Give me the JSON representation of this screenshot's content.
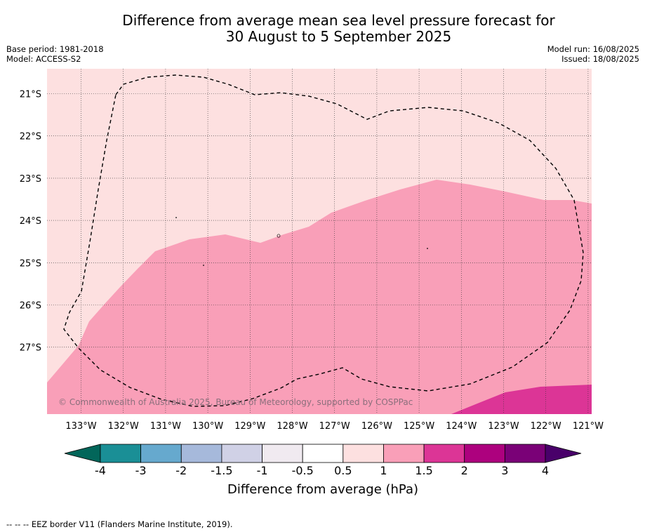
{
  "title_line1": "Difference from average mean sea level pressure forecast for",
  "title_line2": "30 August to 5 September 2025",
  "base_period": "Base period: 1981-2018",
  "model": "Model: ACCESS-S2",
  "model_run": "Model run: 16/08/2025",
  "issued": "Issued: 18/08/2025",
  "copyright": "© Commonwealth of Australia 2025, Bureau of Meteorology, supported by COSPPac",
  "footer": "--  --  -- EEZ border V11 (Flanders Marine Institute, 2019).",
  "map": {
    "lon_labels": [
      "133°W",
      "132°W",
      "131°W",
      "130°W",
      "129°W",
      "128°W",
      "127°W",
      "126°W",
      "125°W",
      "124°W",
      "123°W",
      "122°W",
      "121°W"
    ],
    "lat_labels": [
      "21°S",
      "22°S",
      "23°S",
      "24°S",
      "25°S",
      "26°S",
      "27°S"
    ],
    "region_colors": {
      "0.5_to_1": "#fde0e0",
      "1_to_1.5": "#f99fb8",
      "1.5_to_2": "#dc3596"
    }
  },
  "colorbar": {
    "label": "Difference from average (hPa)",
    "ticks": [
      "-4",
      "-3",
      "-2",
      "-1.5",
      "-1",
      "-0.5",
      "0.5",
      "1",
      "1.5",
      "2",
      "3",
      "4"
    ],
    "colors": [
      "#1a8f96",
      "#66a9ce",
      "#a6b9db",
      "#d0d1e6",
      "#f0eaf0",
      "#ffffff",
      "#fde0e0",
      "#f99fb8",
      "#dc3596",
      "#ad017e",
      "#7a0177"
    ],
    "under_color": "#02665a",
    "over_color": "#49006a"
  }
}
